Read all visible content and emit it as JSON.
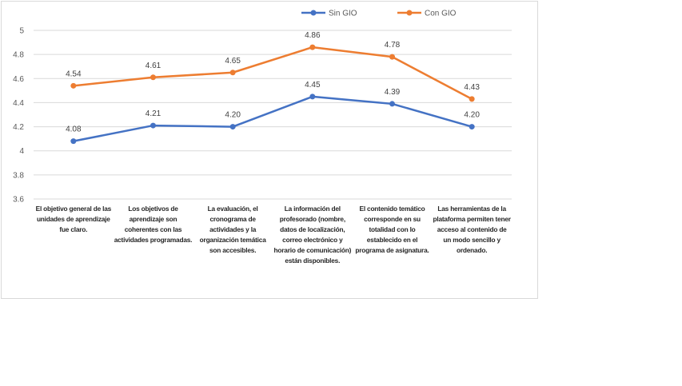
{
  "chart_data": {
    "type": "line",
    "title": "",
    "xlabel": "",
    "ylabel": "",
    "ylim": [
      3.6,
      5
    ],
    "yticks": [
      "3.6",
      "3.8",
      "4",
      "4.2",
      "4.4",
      "4.6",
      "4.8",
      "5"
    ],
    "grid": true,
    "legend_position": "top",
    "categories": [
      "El objetivo general de las unidades de aprendizaje fue claro.",
      "Los objetivos de aprendizaje son coherentes con las actividades programadas.",
      "La evaluación, el cronograma de actividades y la organización temática son accesibles.",
      "La información del profesorado (nombre, datos de localización, correo electrónico y horario de comunicación) están disponibles.",
      "El contenido temático corresponde  en  su totalidad con lo establecido en el programa de asignatura.",
      "Las herramientas de la plataforma permiten tener acceso al contenido de un modo sencillo y ordenado."
    ],
    "series": [
      {
        "name": "Sin GIO",
        "color": "#4472c4",
        "values": [
          4.08,
          4.21,
          4.2,
          4.45,
          4.39,
          4.2
        ],
        "labels": [
          "4.08",
          "4.21",
          "4.20",
          "4.45",
          "4.39",
          "4.20"
        ]
      },
      {
        "name": "Con GIO",
        "color": "#ed7d31",
        "values": [
          4.54,
          4.61,
          4.65,
          4.86,
          4.78,
          4.43
        ],
        "labels": [
          "4.54",
          "4.61",
          "4.65",
          "4.86",
          "4.78",
          "4.43"
        ]
      }
    ]
  }
}
